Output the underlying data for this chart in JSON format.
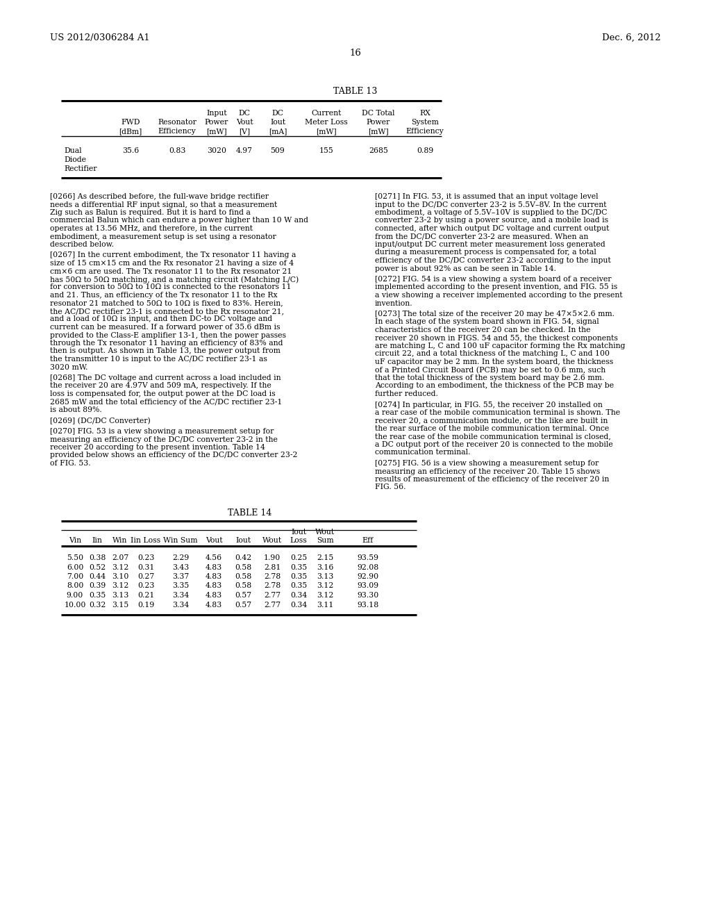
{
  "page_header_left": "US 2012/0306284 A1",
  "page_header_right": "Dec. 6, 2012",
  "page_number": "16",
  "table13_title": "TABLE 13",
  "table13_col1_header": [
    "",
    "FWD",
    "[dBm]"
  ],
  "table13_col2_header": [
    "",
    "Resonator",
    "Efficiency"
  ],
  "table13_col3_header": [
    "Input",
    "Power",
    "[mW]"
  ],
  "table13_col4_header": [
    "DC",
    "Vout",
    "[V]"
  ],
  "table13_col5_header": [
    "DC",
    "Iout",
    "[mA]"
  ],
  "table13_col6_header": [
    "Current",
    "Meter Loss",
    "[mW]"
  ],
  "table13_col7_header": [
    "DC Total",
    "Power",
    "[mW]"
  ],
  "table13_col8_header": [
    "RX",
    "System",
    "Efficiency"
  ],
  "table13_row_labels": [
    "Dual",
    "Diode",
    "Rectifier"
  ],
  "table13_row_data": [
    "35.6",
    "0.83",
    "3020",
    "4.97",
    "509",
    "155",
    "2685",
    "0.89"
  ],
  "table14_title": "TABLE 14",
  "table14_header1": [
    "",
    "",
    "",
    "",
    "",
    "",
    "",
    "",
    "Iout",
    "Wout",
    ""
  ],
  "table14_header2": [
    "Vin",
    "Iin",
    "Win",
    "Iin Loss",
    "Win Sum",
    "Vout",
    "Iout",
    "Wout",
    "Loss",
    "Sum",
    "Eff"
  ],
  "table14_data": [
    [
      "5.50",
      "0.38",
      "2.07",
      "0.23",
      "2.29",
      "4.56",
      "0.42",
      "1.90",
      "0.25",
      "2.15",
      "93.59"
    ],
    [
      "6.00",
      "0.52",
      "3.12",
      "0.31",
      "3.43",
      "4.83",
      "0.58",
      "2.81",
      "0.35",
      "3.16",
      "92.08"
    ],
    [
      "7.00",
      "0.44",
      "3.10",
      "0.27",
      "3.37",
      "4.83",
      "0.58",
      "2.78",
      "0.35",
      "3.13",
      "92.90"
    ],
    [
      "8.00",
      "0.39",
      "3.12",
      "0.23",
      "3.35",
      "4.83",
      "0.58",
      "2.78",
      "0.35",
      "3.12",
      "93.09"
    ],
    [
      "9.00",
      "0.35",
      "3.13",
      "0.21",
      "3.34",
      "4.83",
      "0.57",
      "2.77",
      "0.34",
      "3.12",
      "93.30"
    ],
    [
      "10.00",
      "0.32",
      "3.15",
      "0.19",
      "3.34",
      "4.83",
      "0.57",
      "2.77",
      "0.34",
      "3.11",
      "93.18"
    ]
  ],
  "para_0266": "[0266]    As described before, the full-wave bridge rectifier needs a differential RF input signal, so that a measurement Zig such as Balun is required. But it is hard to find a commercial Balun which can endure a power higher than 10 W and operates at 13.56 MHz, and therefore, in the current embodiment, a measurement setup is set using a resonator described below.",
  "para_0267": "[0267]    In the current embodiment, the Tx resonator 11 having a size of 15 cm×15 cm and the Rx resonator 21 having a size of 4 cm×6 cm are used. The Tx resonator 11 to the Rx resonator 21 has 50Ω to 50Ω matching, and a matching circuit (Matching L/C) for conversion to 50Ω to 10Ω is connected to the resonators 11 and 21. Thus, an efficiency of the Tx resonator 11 to the Rx resonator 21 matched to 50Ω to 10Ω is fixed to 83%. Herein, the AC/DC rectifier 23-1 is connected to the Rx resonator 21, and a load of 10Ω is input, and then DC-to DC voltage and current can be measured. If a forward power of 35.6 dBm is provided to the Class-E amplifier 13-1, then the power passes through the Tx resonator 11 having an efficiency of 83% and then is output. As shown in Table 13, the power output from the transmitter 10 is input to the AC/DC rectifier 23-1 as 3020 mW.",
  "para_0268": "[0268]    The DC voltage and current across a load included in the receiver 20 are 4.97V and 509 mA, respectively. If the loss is compensated for, the output power at the DC load is 2685 mW and the total efficiency of the AC/DC rectifier 23-1 is about 89%.",
  "para_0269": "[0269]    (DC/DC Converter)",
  "para_0270": "[0270]    FIG. 53 is a view showing a measurement setup for measuring an efficiency of the DC/DC converter 23-2 in the receiver 20 according to the present invention. Table 14 provided below shows an efficiency of the DC/DC converter 23-2 of FIG. 53.",
  "para_0271": "[0271]    In FIG. 53, it is assumed that an input voltage level input to the DC/DC converter 23-2 is 5.5V–8V. In the current embodiment, a voltage of 5.5V–10V is supplied to the DC/DC converter 23-2 by using a power source, and a mobile load is connected, after which output DC voltage and current output from the DC/DC converter 23-2 are measured. When an input/output DC current meter measurement loss generated during a measurement process is compensated for, a total efficiency of the DC/DC converter 23-2 according to the input power is about 92% as can be seen in Table 14.",
  "para_0272": "[0272]    FIG. 54 is a view showing a system board of a receiver implemented according to the present invention, and FIG. 55 is a view showing a receiver implemented according to the present invention.",
  "para_0273": "[0273]    The total size of the receiver 20 may be 47×5×2.6 mm. In each stage of the system board shown in FIG. 54, signal characteristics of the receiver 20 can be checked. In the receiver 20 shown in FIGS. 54 and 55, the thickest components are matching L, C and 100 uF capacitor forming the Rx matching circuit 22, and a total thickness of the matching L, C and 100 uF capacitor may be 2 mm. In the system board, the thickness of a Printed Circuit Board (PCB) may be set to 0.6 mm, such that the total thickness of the system board may be 2.6 mm. According to an embodiment, the thickness of the PCB may be further reduced.",
  "para_0274": "[0274]    In particular, in FIG. 55, the receiver 20 installed on a rear case of the mobile communication terminal is shown. The receiver 20, a communication module, or the like are built in the rear surface of the mobile communication terminal. Once the rear case of the mobile communication terminal is closed, a DC output port of the receiver 20 is connected to the mobile communication terminal.",
  "para_0275": "[0275]    FIG. 56 is a view showing a measurement setup for measuring an efficiency of the receiver 20. Table 15 shows results of measurement of the efficiency of the receiver 20 in FIG. 56."
}
